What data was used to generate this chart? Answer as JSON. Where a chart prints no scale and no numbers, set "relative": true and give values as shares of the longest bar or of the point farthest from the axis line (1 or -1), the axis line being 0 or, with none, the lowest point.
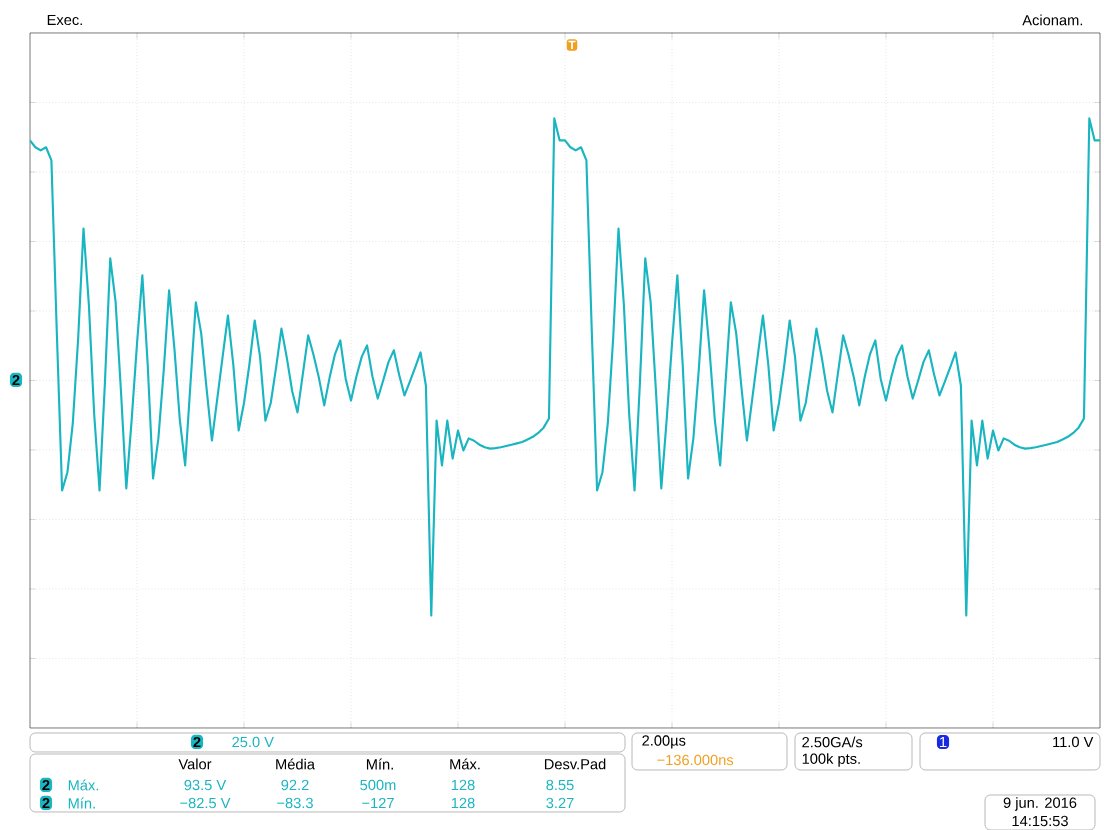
{
  "chart_data": {
    "type": "line",
    "relative": true,
    "color": "#19b5c0",
    "grid": true,
    "categories": [
      null,
      null,
      null,
      null,
      null,
      null,
      null,
      null,
      null,
      null,
      null,
      null,
      null,
      null,
      null,
      null,
      null,
      null,
      null,
      null,
      null,
      null,
      null,
      null,
      null,
      null,
      null,
      null,
      null,
      null,
      null,
      null,
      null,
      null,
      null,
      null,
      null,
      null,
      null,
      null,
      null,
      null,
      null,
      null,
      null,
      null,
      null,
      null,
      null,
      null,
      null,
      null,
      null,
      null,
      null,
      null,
      null,
      null,
      null,
      null,
      null,
      null,
      null,
      null,
      null,
      null,
      null,
      null,
      null,
      null,
      null,
      null,
      null,
      null,
      null,
      null,
      null,
      null,
      null,
      null,
      null,
      null,
      null,
      null,
      null,
      null,
      null,
      null,
      null,
      null,
      null,
      null,
      null,
      null,
      null,
      null,
      null,
      null,
      null,
      null,
      null,
      null,
      null,
      null,
      null,
      null,
      null,
      null,
      null,
      null,
      null,
      null,
      null,
      null,
      null,
      null,
      null,
      null,
      null,
      null,
      null,
      null,
      null,
      null,
      null,
      null,
      null,
      null,
      null,
      null,
      null,
      null,
      null,
      null,
      null,
      null,
      null,
      null,
      null,
      null,
      null,
      null,
      null,
      null,
      null,
      null,
      null,
      null,
      null,
      null,
      null,
      null,
      null,
      null,
      null,
      null,
      null,
      null,
      null,
      null,
      null,
      null,
      null,
      null,
      null,
      null,
      null,
      null,
      null,
      null,
      null,
      null,
      null,
      null,
      null,
      null,
      null,
      null,
      null,
      null,
      null,
      null,
      null,
      null,
      null,
      null,
      null,
      null,
      null,
      null,
      null,
      null,
      null,
      null,
      null,
      null,
      null,
      null,
      null,
      null,
      null
    ],
    "values": [
      0.916,
      0.89,
      0.878,
      0.89,
      0.84,
      0.191,
      -0.42,
      -0.35,
      -0.163,
      0.16,
      0.58,
      0.29,
      -0.13,
      -0.42,
      -0.01,
      0.466,
      0.3,
      -0.04,
      -0.412,
      -0.15,
      0.14,
      0.401,
      0.06,
      -0.374,
      -0.22,
      0.04,
      0.344,
      0.12,
      -0.15,
      -0.324,
      -0.01,
      0.298,
      0.18,
      -0.03,
      -0.229,
      -0.07,
      0.09,
      0.248,
      0.06,
      -0.191,
      -0.086,
      0.06,
      0.229,
      0.09,
      -0.153,
      -0.086,
      0.05,
      0.198,
      0.087,
      -0.04,
      -0.122,
      0.025,
      0.172,
      0.097,
      0.01,
      -0.095,
      0.011,
      0.1,
      0.153,
      0.007,
      -0.076,
      0.014,
      0.09,
      0.134,
      0.016,
      -0.069,
      -0.001,
      0.07,
      0.115,
      0.022,
      -0.057,
      -0.004,
      0.05,
      0.107,
      -0.02,
      -0.897,
      -0.153,
      -0.324,
      -0.153,
      -0.298,
      -0.191,
      -0.267,
      -0.221,
      -0.23,
      -0.245,
      -0.255,
      -0.26,
      -0.258,
      -0.255,
      -0.25,
      -0.245,
      -0.24,
      -0.235,
      -0.225,
      -0.215,
      -0.2,
      -0.18,
      -0.145,
      1.0,
      0.916,
      0.916,
      0.89,
      0.878,
      0.89,
      0.84,
      0.191,
      -0.42,
      -0.35,
      -0.163,
      0.16,
      0.58,
      0.29,
      -0.13,
      -0.42,
      -0.01,
      0.466,
      0.3,
      -0.04,
      -0.412,
      -0.15,
      0.14,
      0.401,
      0.06,
      -0.374,
      -0.22,
      0.04,
      0.344,
      0.12,
      -0.15,
      -0.324,
      -0.01,
      0.298,
      0.18,
      -0.03,
      -0.229,
      -0.07,
      0.09,
      0.248,
      0.06,
      -0.191,
      -0.086,
      0.06,
      0.229,
      0.09,
      -0.153,
      -0.086,
      0.05,
      0.198,
      0.087,
      -0.04,
      -0.122,
      0.025,
      0.172,
      0.097,
      0.01,
      -0.095,
      0.011,
      0.1,
      0.153,
      0.007,
      -0.076,
      0.014,
      0.09,
      0.134,
      0.016,
      -0.069,
      -0.001,
      0.07,
      0.115,
      0.022,
      -0.057,
      -0.004,
      0.05,
      0.107,
      -0.02,
      -0.897,
      -0.153,
      -0.324,
      -0.153,
      -0.298,
      -0.191,
      -0.267,
      -0.221,
      -0.23,
      -0.245,
      -0.255,
      -0.26,
      -0.258,
      -0.255,
      -0.25,
      -0.245,
      -0.24,
      -0.235,
      -0.225,
      -0.215,
      -0.2,
      -0.18,
      -0.145,
      1.0,
      0.916,
      0.916
    ],
    "annotations": [
      "Exec.",
      "Acionam.",
      "2",
      "25.0 V",
      "Valor",
      "Média",
      "Mín.",
      "Máx.",
      "Desv.Pad",
      "2",
      "Máx.",
      "93.5 V",
      "92.2",
      "500m",
      "128",
      "8.55",
      "2",
      "Mín.",
      "−82.5 V",
      "−83.3",
      "−127",
      "128",
      "3.27",
      "2.00µs",
      "−136.000ns",
      "2.50GA/s",
      "100k pts.",
      "1",
      "11.0 V",
      "9 jun. 2016",
      "14:15:53",
      "2",
      "T"
    ]
  }
}
